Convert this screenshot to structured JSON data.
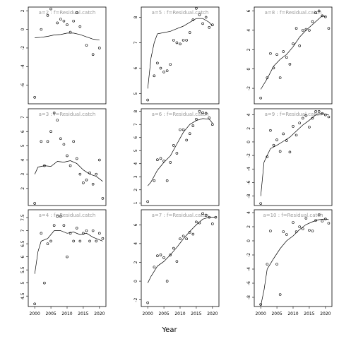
{
  "chart_data": {
    "type": "scatter",
    "xlabel": "Year",
    "x_ticks": [
      2000,
      2005,
      2010,
      2015,
      2020
    ],
    "xlim": [
      1998,
      2022
    ],
    "panels": [
      {
        "label": "a=2 : f=Residual.catch",
        "ylim": [
          -8,
          2.4
        ],
        "y_ticks": [
          -6,
          -4,
          -2,
          0,
          2
        ],
        "points": [
          [
            2000,
            -7.3
          ],
          [
            2002,
            0.0
          ],
          [
            2004,
            1.5
          ],
          [
            2005,
            2.2
          ],
          [
            2007,
            0.7
          ],
          [
            2008,
            1.1
          ],
          [
            2009,
            0.9
          ],
          [
            2010,
            0.5
          ],
          [
            2011,
            -0.3
          ],
          [
            2012,
            0.9
          ],
          [
            2013,
            1.8
          ],
          [
            2014,
            0.3
          ],
          [
            2016,
            -1.7
          ],
          [
            2018,
            -2.7
          ],
          [
            2020,
            -2.0
          ]
        ],
        "fit": [
          [
            2000,
            -0.9
          ],
          [
            2002,
            -0.85
          ],
          [
            2004,
            -0.75
          ],
          [
            2006,
            -0.6
          ],
          [
            2008,
            -0.55
          ],
          [
            2010,
            -0.4
          ],
          [
            2012,
            -0.4
          ],
          [
            2014,
            -0.55
          ],
          [
            2016,
            -0.8
          ],
          [
            2018,
            -1.05
          ],
          [
            2020,
            -1.15
          ]
        ]
      },
      {
        "label": "a=5 : f=Residual.catch",
        "ylim": [
          4.6,
          8.4
        ],
        "y_ticks": [
          5,
          6,
          7,
          8
        ],
        "points": [
          [
            2000,
            4.75
          ],
          [
            2002,
            5.7
          ],
          [
            2003,
            6.2
          ],
          [
            2004,
            6.0
          ],
          [
            2005,
            5.85
          ],
          [
            2006,
            5.9
          ],
          [
            2007,
            6.15
          ],
          [
            2008,
            7.1
          ],
          [
            2009,
            7.0
          ],
          [
            2010,
            6.95
          ],
          [
            2011,
            7.1
          ],
          [
            2012,
            7.1
          ],
          [
            2013,
            7.4
          ],
          [
            2014,
            7.9
          ],
          [
            2015,
            8.35
          ],
          [
            2016,
            8.1
          ],
          [
            2017,
            7.75
          ],
          [
            2018,
            8.0
          ],
          [
            2019,
            7.6
          ],
          [
            2020,
            7.7
          ]
        ],
        "fit": [
          [
            2000,
            5.2
          ],
          [
            2001,
            6.4
          ],
          [
            2002,
            7.0
          ],
          [
            2003,
            7.35
          ],
          [
            2005,
            7.4
          ],
          [
            2007,
            7.45
          ],
          [
            2009,
            7.55
          ],
          [
            2011,
            7.65
          ],
          [
            2013,
            7.8
          ],
          [
            2015,
            7.95
          ],
          [
            2017,
            7.95
          ],
          [
            2019,
            7.8
          ],
          [
            2020,
            7.65
          ]
        ]
      },
      {
        "label": "a=8 : f=Residual.catch",
        "ylim": [
          -3.6,
          6.4
        ],
        "y_ticks": [
          -2,
          0,
          2,
          4,
          6
        ],
        "points": [
          [
            2000,
            -3.0
          ],
          [
            2002,
            -0.9
          ],
          [
            2003,
            1.6
          ],
          [
            2004,
            0.1
          ],
          [
            2005,
            1.5
          ],
          [
            2006,
            -0.9
          ],
          [
            2007,
            1.8
          ],
          [
            2008,
            1.2
          ],
          [
            2009,
            0.5
          ],
          [
            2010,
            2.6
          ],
          [
            2011,
            4.2
          ],
          [
            2012,
            2.4
          ],
          [
            2013,
            4.0
          ],
          [
            2014,
            4.1
          ],
          [
            2015,
            4.0
          ],
          [
            2016,
            4.9
          ],
          [
            2017,
            5.8
          ],
          [
            2018,
            6.0
          ],
          [
            2019,
            5.5
          ],
          [
            2020,
            5.4
          ],
          [
            2021,
            4.2
          ]
        ],
        "fit": [
          [
            2000,
            -2.1
          ],
          [
            2002,
            -1.0
          ],
          [
            2004,
            0.3
          ],
          [
            2006,
            1.0
          ],
          [
            2008,
            1.5
          ],
          [
            2010,
            2.3
          ],
          [
            2012,
            3.3
          ],
          [
            2014,
            4.0
          ],
          [
            2016,
            4.6
          ],
          [
            2018,
            5.2
          ],
          [
            2019,
            5.5
          ],
          [
            2020,
            5.4
          ]
        ]
      },
      {
        "label": "a=3 : f=Residual.catch",
        "ylim": [
          0.8,
          7.6
        ],
        "y_ticks": [
          2,
          3,
          4,
          5,
          6,
          7
        ],
        "points": [
          [
            2000,
            0.95
          ],
          [
            2002,
            5.3
          ],
          [
            2003,
            3.6
          ],
          [
            2004,
            5.3
          ],
          [
            2005,
            6.0
          ],
          [
            2006,
            7.3
          ],
          [
            2007,
            6.8
          ],
          [
            2008,
            5.5
          ],
          [
            2009,
            5.1
          ],
          [
            2010,
            4.3
          ],
          [
            2011,
            3.6
          ],
          [
            2012,
            5.3
          ],
          [
            2013,
            4.1
          ],
          [
            2014,
            3.0
          ],
          [
            2015,
            2.4
          ],
          [
            2016,
            2.6
          ],
          [
            2017,
            3.1
          ],
          [
            2018,
            2.3
          ],
          [
            2019,
            3.0
          ],
          [
            2020,
            4.0
          ],
          [
            2021,
            1.3
          ]
        ],
        "fit": [
          [
            2000,
            3.0
          ],
          [
            2001,
            3.5
          ],
          [
            2003,
            3.6
          ],
          [
            2005,
            3.55
          ],
          [
            2007,
            3.9
          ],
          [
            2009,
            3.85
          ],
          [
            2011,
            3.95
          ],
          [
            2013,
            3.75
          ],
          [
            2015,
            3.3
          ],
          [
            2017,
            3.0
          ],
          [
            2019,
            2.85
          ],
          [
            2021,
            2.5
          ]
        ]
      },
      {
        "label": "a=6 : f=Residual.catch",
        "ylim": [
          0.8,
          8.2
        ],
        "y_ticks": [
          1,
          2,
          3,
          4,
          5,
          6,
          7,
          8
        ],
        "points": [
          [
            2000,
            1.1
          ],
          [
            2002,
            2.7
          ],
          [
            2003,
            4.3
          ],
          [
            2004,
            4.4
          ],
          [
            2005,
            4.2
          ],
          [
            2006,
            2.7
          ],
          [
            2007,
            4.1
          ],
          [
            2008,
            5.4
          ],
          [
            2009,
            4.8
          ],
          [
            2010,
            6.6
          ],
          [
            2011,
            6.6
          ],
          [
            2012,
            5.8
          ],
          [
            2013,
            6.3
          ],
          [
            2014,
            6.9
          ],
          [
            2015,
            7.4
          ],
          [
            2016,
            8.0
          ],
          [
            2017,
            7.9
          ],
          [
            2018,
            7.85
          ],
          [
            2019,
            7.5
          ],
          [
            2020,
            7.0
          ]
        ],
        "fit": [
          [
            2000,
            2.3
          ],
          [
            2001,
            2.6
          ],
          [
            2003,
            3.5
          ],
          [
            2005,
            4.1
          ],
          [
            2007,
            4.6
          ],
          [
            2009,
            5.5
          ],
          [
            2011,
            6.4
          ],
          [
            2013,
            7.0
          ],
          [
            2015,
            7.3
          ],
          [
            2017,
            7.45
          ],
          [
            2019,
            7.4
          ],
          [
            2020,
            7.1
          ]
        ]
      },
      {
        "label": "a=9 : f=Residual.catch",
        "ylim": [
          -9.4,
          4.9
        ],
        "y_ticks": [
          -8,
          -6,
          -4,
          -2,
          0,
          2,
          4
        ],
        "points": [
          [
            2000,
            -9.1
          ],
          [
            2002,
            -2.2
          ],
          [
            2003,
            1.7
          ],
          [
            2004,
            -0.5
          ],
          [
            2005,
            0.3
          ],
          [
            2006,
            -1.4
          ],
          [
            2007,
            1.2
          ],
          [
            2008,
            0.2
          ],
          [
            2009,
            -1.5
          ],
          [
            2010,
            2.3
          ],
          [
            2011,
            1.0
          ],
          [
            2012,
            2.8
          ],
          [
            2013,
            3.5
          ],
          [
            2014,
            3.9
          ],
          [
            2015,
            2.2
          ],
          [
            2016,
            3.5
          ],
          [
            2017,
            4.5
          ],
          [
            2018,
            4.5
          ],
          [
            2019,
            4.2
          ],
          [
            2020,
            4.0
          ],
          [
            2021,
            3.7
          ]
        ],
        "fit": [
          [
            2000,
            -8.0
          ],
          [
            2001,
            -3.0
          ],
          [
            2002,
            -2.0
          ],
          [
            2003,
            -1.0
          ],
          [
            2005,
            -0.5
          ],
          [
            2007,
            0.1
          ],
          [
            2009,
            0.7
          ],
          [
            2011,
            1.6
          ],
          [
            2013,
            2.5
          ],
          [
            2015,
            3.2
          ],
          [
            2017,
            4.0
          ],
          [
            2019,
            4.2
          ],
          [
            2021,
            4.0
          ]
        ]
      },
      {
        "label": "a=4 : f=Residual.catch",
        "ylim": [
          4.1,
          7.8
        ],
        "y_ticks": [
          4.5,
          5.0,
          5.5,
          6.0,
          6.5,
          7.0,
          7.5
        ],
        "points": [
          [
            2000,
            4.2
          ],
          [
            2002,
            6.9
          ],
          [
            2003,
            5.0
          ],
          [
            2004,
            6.5
          ],
          [
            2005,
            6.6
          ],
          [
            2006,
            7.2
          ],
          [
            2007,
            7.55
          ],
          [
            2008,
            7.55
          ],
          [
            2009,
            7.2
          ],
          [
            2010,
            6.0
          ],
          [
            2011,
            6.9
          ],
          [
            2012,
            6.6
          ],
          [
            2013,
            7.1
          ],
          [
            2014,
            6.6
          ],
          [
            2015,
            6.9
          ],
          [
            2016,
            7.0
          ],
          [
            2017,
            6.6
          ],
          [
            2018,
            7.0
          ],
          [
            2019,
            6.6
          ],
          [
            2020,
            6.9
          ],
          [
            2021,
            6.7
          ]
        ],
        "fit": [
          [
            2000,
            5.35
          ],
          [
            2001,
            6.2
          ],
          [
            2002,
            6.6
          ],
          [
            2004,
            6.7
          ],
          [
            2006,
            7.0
          ],
          [
            2008,
            7.0
          ],
          [
            2010,
            6.9
          ],
          [
            2012,
            6.95
          ],
          [
            2014,
            6.85
          ],
          [
            2016,
            6.9
          ],
          [
            2018,
            6.75
          ],
          [
            2020,
            6.65
          ],
          [
            2021,
            6.6
          ]
        ]
      },
      {
        "label": "a=7 : f=Residual.catch",
        "ylim": [
          -2.7,
          7.6
        ],
        "y_ticks": [
          -2,
          0,
          2,
          4,
          6
        ],
        "points": [
          [
            2000,
            -2.3
          ],
          [
            2002,
            1.5
          ],
          [
            2003,
            2.7
          ],
          [
            2004,
            2.8
          ],
          [
            2005,
            2.5
          ],
          [
            2006,
            0.0
          ],
          [
            2007,
            2.8
          ],
          [
            2008,
            3.5
          ],
          [
            2009,
            2.1
          ],
          [
            2010,
            4.5
          ],
          [
            2011,
            4.8
          ],
          [
            2012,
            4.5
          ],
          [
            2013,
            5.2
          ],
          [
            2014,
            5.0
          ],
          [
            2015,
            6.3
          ],
          [
            2016,
            6.2
          ],
          [
            2017,
            7.2
          ],
          [
            2018,
            7.0
          ],
          [
            2019,
            6.8
          ],
          [
            2020,
            6.1
          ],
          [
            2021,
            6.8
          ]
        ],
        "fit": [
          [
            2000,
            -0.2
          ],
          [
            2001,
            0.5
          ],
          [
            2003,
            1.6
          ],
          [
            2005,
            2.1
          ],
          [
            2007,
            2.8
          ],
          [
            2009,
            3.6
          ],
          [
            2011,
            4.5
          ],
          [
            2013,
            5.3
          ],
          [
            2015,
            6.0
          ],
          [
            2017,
            6.6
          ],
          [
            2019,
            6.8
          ],
          [
            2021,
            6.8
          ]
        ]
      },
      {
        "label": "a=10 : f=Residual.catch",
        "ylim": [
          -9.3,
          4.4
        ],
        "y_ticks": [
          -8,
          -6,
          -4,
          -2,
          0,
          2,
          4
        ],
        "points": [
          [
            2000,
            -9.0
          ],
          [
            2002,
            -3.3
          ],
          [
            2003,
            1.4
          ],
          [
            2005,
            -3.3
          ],
          [
            2006,
            -7.6
          ],
          [
            2007,
            1.3
          ],
          [
            2008,
            0.9
          ],
          [
            2010,
            2.6
          ],
          [
            2011,
            1.3
          ],
          [
            2012,
            2.0
          ],
          [
            2013,
            1.7
          ],
          [
            2014,
            3.2
          ],
          [
            2015,
            1.5
          ],
          [
            2016,
            1.4
          ],
          [
            2017,
            2.9
          ],
          [
            2018,
            3.7
          ],
          [
            2019,
            2.8
          ],
          [
            2020,
            3.1
          ],
          [
            2021,
            2.5
          ]
        ],
        "fit": [
          [
            2000,
            -9.2
          ],
          [
            2001,
            -7.0
          ],
          [
            2002,
            -4.0
          ],
          [
            2004,
            -2.5
          ],
          [
            2006,
            -1.1
          ],
          [
            2008,
            0.0
          ],
          [
            2010,
            0.7
          ],
          [
            2012,
            1.6
          ],
          [
            2014,
            2.3
          ],
          [
            2016,
            2.7
          ],
          [
            2018,
            3.0
          ],
          [
            2020,
            3.1
          ],
          [
            2021,
            3.0
          ]
        ]
      }
    ]
  }
}
